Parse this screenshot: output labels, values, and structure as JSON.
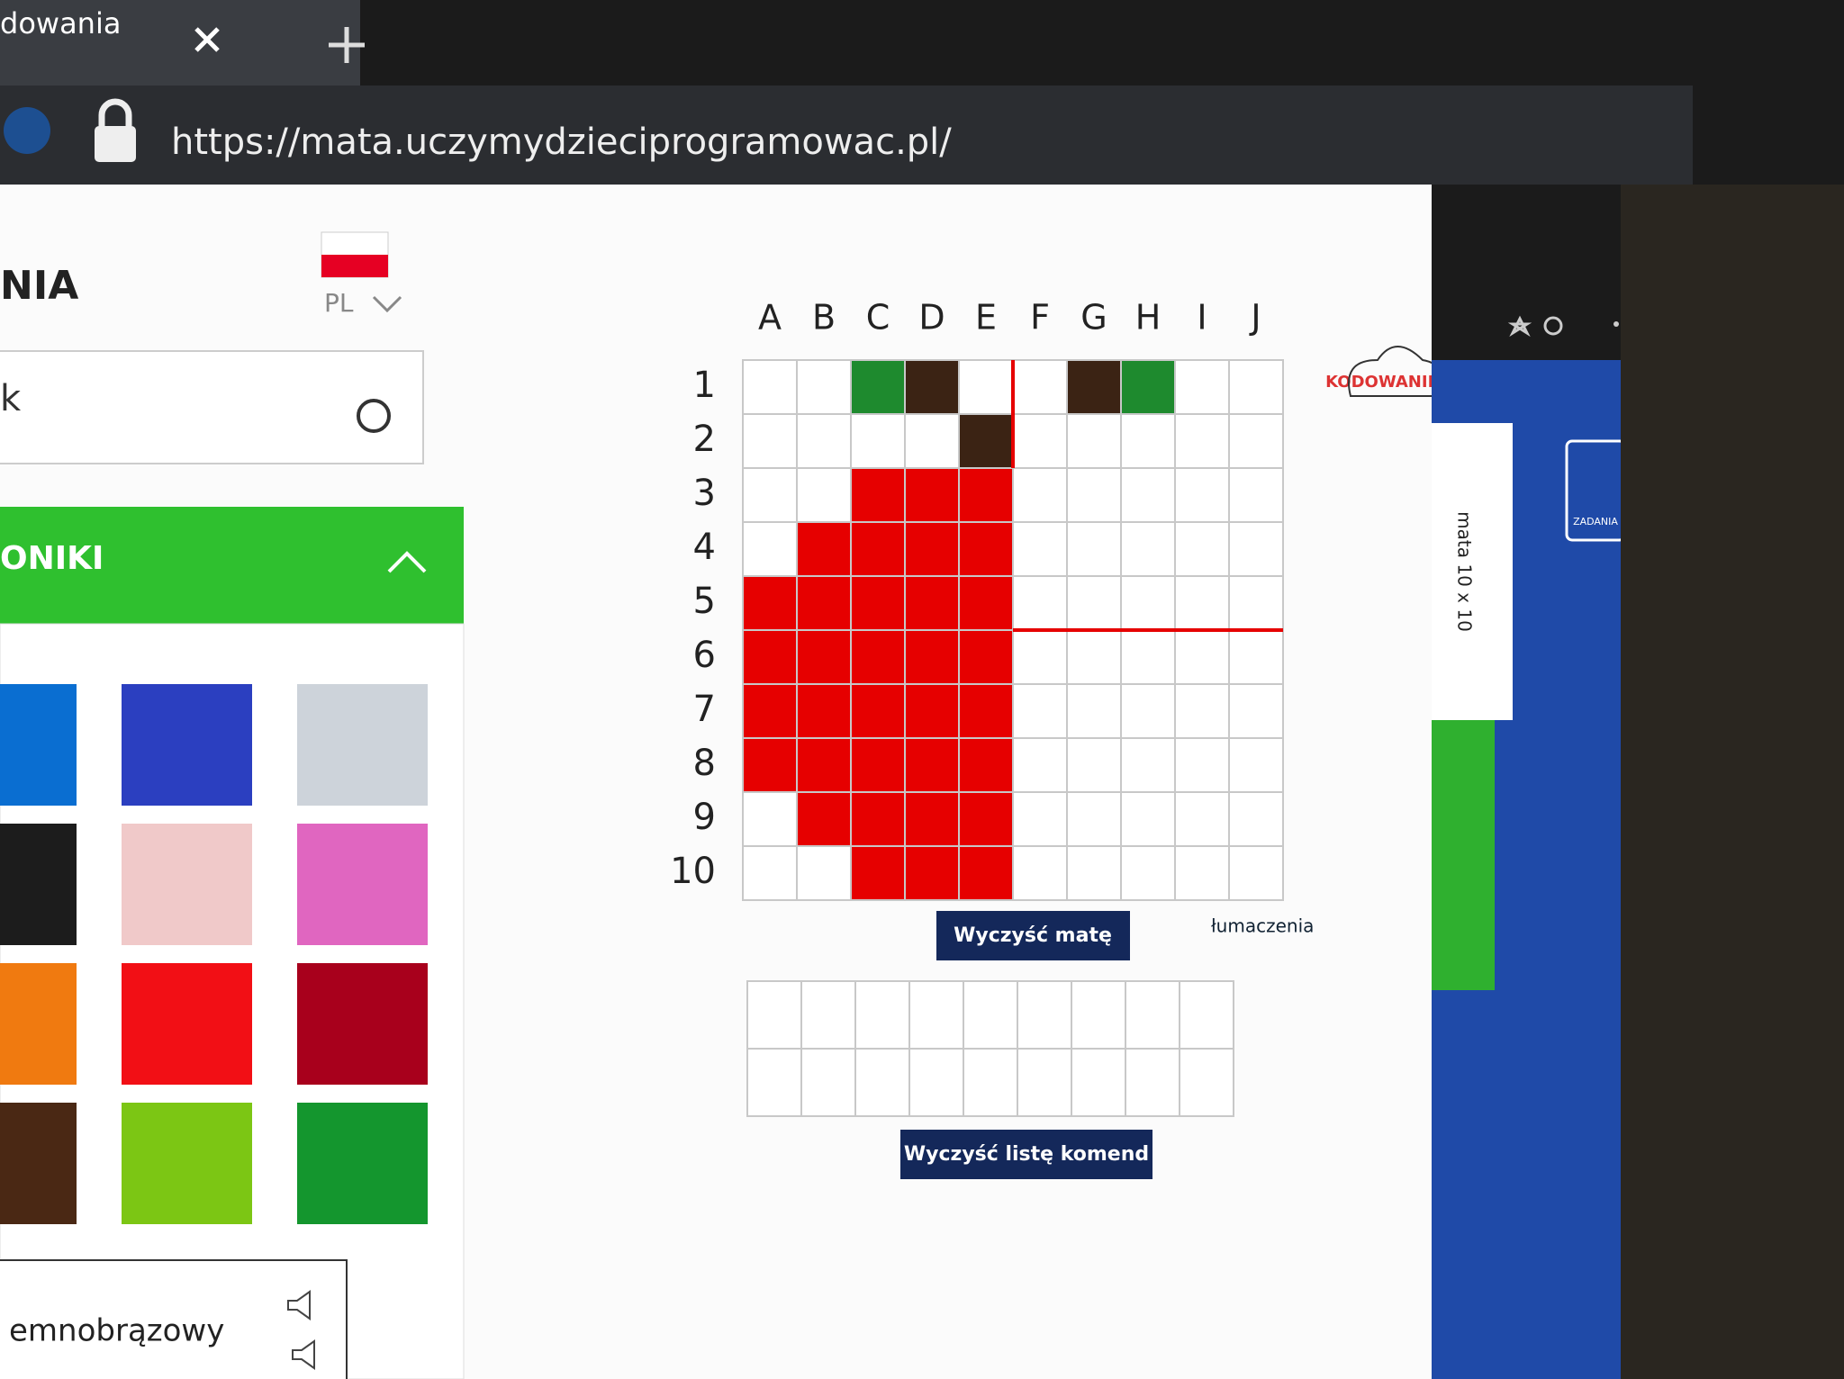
{
  "browser": {
    "tab_title": "dowania",
    "url": "https://mata.uczymydzieciprogramowac.pl/"
  },
  "header": {
    "title": "NIA",
    "language": "PL",
    "search": "k"
  },
  "sidebar": {
    "section": "ONIKI",
    "palette": [
      "#0a6ed1",
      "#2b3fc0",
      "#cdd3da",
      "#1c1c1c",
      "#f0c9c9",
      "#e066c0",
      "#f07a10",
      "#f20f15",
      "#a8001c",
      "#4a2814",
      "#7cc614",
      "#14962e"
    ],
    "selected_color_name": "emnobrązowy"
  },
  "mat": {
    "columns": [
      "A",
      "B",
      "C",
      "D",
      "E",
      "F",
      "G",
      "H",
      "I",
      "J"
    ],
    "rows": [
      1,
      2,
      3,
      4,
      5,
      6,
      7,
      8,
      9,
      10
    ],
    "cells": [
      [
        null,
        null,
        "#1e8a2e",
        "#3b2314",
        null,
        null,
        "#3b2314",
        "#1e8a2e",
        null,
        null
      ],
      [
        null,
        null,
        null,
        null,
        "#3b2314",
        null,
        null,
        null,
        null,
        null
      ],
      [
        null,
        null,
        "#e60000",
        "#e60000",
        "#e60000",
        null,
        null,
        null,
        null,
        null
      ],
      [
        null,
        "#e60000",
        "#e60000",
        "#e60000",
        "#e60000",
        null,
        null,
        null,
        null,
        null
      ],
      [
        "#e60000",
        "#e60000",
        "#e60000",
        "#e60000",
        "#e60000",
        null,
        null,
        null,
        null,
        null
      ],
      [
        "#e60000",
        "#e60000",
        "#e60000",
        "#e60000",
        "#e60000",
        null,
        null,
        null,
        null,
        null
      ],
      [
        "#e60000",
        "#e60000",
        "#e60000",
        "#e60000",
        "#e60000",
        null,
        null,
        null,
        null,
        null
      ],
      [
        "#e60000",
        "#e60000",
        "#e60000",
        "#e60000",
        "#e60000",
        null,
        null,
        null,
        null,
        null
      ],
      [
        null,
        "#e60000",
        "#e60000",
        "#e60000",
        "#e60000",
        null,
        null,
        null,
        null,
        null
      ],
      [
        null,
        null,
        "#e60000",
        "#e60000",
        "#e60000",
        null,
        null,
        null,
        null,
        null
      ]
    ]
  },
  "buttons": {
    "clear_mat": "Wyczyść matę",
    "clear_commands": "Wyczyść listę komend",
    "translations": "łumaczenia"
  },
  "logo": "KODOWANIE",
  "right_panel": {
    "mat_tab": "mata 10 x 10",
    "tasks": "ZADANIA"
  }
}
